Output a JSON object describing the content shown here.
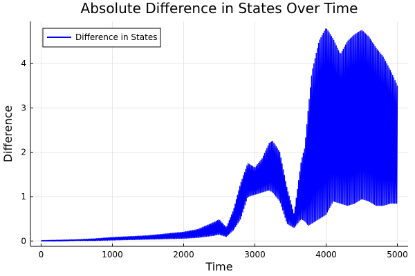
{
  "chart_data": {
    "type": "line",
    "title": "Absolute Difference in States Over Time",
    "xlabel": "Time",
    "ylabel": "Difference",
    "xlim": [
      -150,
      5150
    ],
    "ylim": [
      -0.12,
      4.95
    ],
    "xticks": [
      0,
      1000,
      2000,
      3000,
      4000,
      5000
    ],
    "yticks": [
      0,
      1,
      2,
      3,
      4
    ],
    "grid": true,
    "legend": {
      "position": "top-left"
    },
    "colors": {
      "series": "#0000ff",
      "axis": "#000000",
      "grid": "#e6e6e6"
    },
    "series": [
      {
        "name": "Difference in States",
        "envelope": [
          {
            "x": 0,
            "low": 0.0,
            "high": 0.01
          },
          {
            "x": 250,
            "low": 0.0,
            "high": 0.02
          },
          {
            "x": 500,
            "low": 0.01,
            "high": 0.03
          },
          {
            "x": 750,
            "low": 0.01,
            "high": 0.05
          },
          {
            "x": 1000,
            "low": 0.02,
            "high": 0.08
          },
          {
            "x": 1250,
            "low": 0.03,
            "high": 0.1
          },
          {
            "x": 1500,
            "low": 0.04,
            "high": 0.12
          },
          {
            "x": 1750,
            "low": 0.05,
            "high": 0.16
          },
          {
            "x": 2000,
            "low": 0.06,
            "high": 0.2
          },
          {
            "x": 2200,
            "low": 0.08,
            "high": 0.26
          },
          {
            "x": 2400,
            "low": 0.12,
            "high": 0.4
          },
          {
            "x": 2500,
            "low": 0.15,
            "high": 0.48
          },
          {
            "x": 2600,
            "low": 0.1,
            "high": 0.3
          },
          {
            "x": 2700,
            "low": 0.25,
            "high": 0.7
          },
          {
            "x": 2800,
            "low": 0.5,
            "high": 1.3
          },
          {
            "x": 2900,
            "low": 1.0,
            "high": 1.75
          },
          {
            "x": 3000,
            "low": 1.05,
            "high": 1.65
          },
          {
            "x": 3100,
            "low": 1.1,
            "high": 1.85
          },
          {
            "x": 3200,
            "low": 1.15,
            "high": 2.2
          },
          {
            "x": 3250,
            "low": 1.1,
            "high": 2.25
          },
          {
            "x": 3350,
            "low": 0.9,
            "high": 2.0
          },
          {
            "x": 3450,
            "low": 0.4,
            "high": 1.2
          },
          {
            "x": 3550,
            "low": 0.3,
            "high": 0.6
          },
          {
            "x": 3650,
            "low": 0.5,
            "high": 1.8
          },
          {
            "x": 3700,
            "low": 0.45,
            "high": 2.1
          },
          {
            "x": 3750,
            "low": 0.35,
            "high": 3.0
          },
          {
            "x": 3800,
            "low": 0.4,
            "high": 3.8
          },
          {
            "x": 3900,
            "low": 0.5,
            "high": 4.5
          },
          {
            "x": 4000,
            "low": 0.6,
            "high": 4.8
          },
          {
            "x": 4100,
            "low": 0.9,
            "high": 4.55
          },
          {
            "x": 4200,
            "low": 0.85,
            "high": 4.2
          },
          {
            "x": 4300,
            "low": 0.8,
            "high": 4.5
          },
          {
            "x": 4400,
            "low": 0.85,
            "high": 4.65
          },
          {
            "x": 4500,
            "low": 0.95,
            "high": 4.75
          },
          {
            "x": 4600,
            "low": 0.9,
            "high": 4.6
          },
          {
            "x": 4700,
            "low": 0.8,
            "high": 4.35
          },
          {
            "x": 4800,
            "low": 0.8,
            "high": 4.15
          },
          {
            "x": 4900,
            "low": 0.85,
            "high": 3.85
          },
          {
            "x": 5000,
            "low": 0.85,
            "high": 3.5
          }
        ]
      }
    ]
  }
}
